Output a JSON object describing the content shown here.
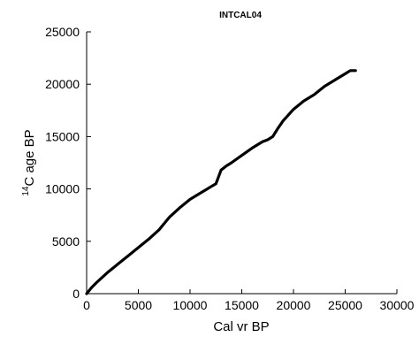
{
  "chart_data": {
    "type": "line",
    "title": "INTCAL04",
    "xlabel": "Cal vr BP",
    "ylabel_sup": "14",
    "ylabel_main": "C age  BP",
    "xlim": [
      0,
      30000
    ],
    "ylim": [
      0,
      25000
    ],
    "xticks": [
      0,
      5000,
      10000,
      15000,
      20000,
      25000,
      30000
    ],
    "yticks": [
      0,
      5000,
      10000,
      15000,
      20000,
      25000
    ],
    "grid": false,
    "legend": "none",
    "series": [
      {
        "x": [
          0,
          500,
          1000,
          2000,
          3000,
          4000,
          5000,
          6000,
          7000,
          8000,
          9000,
          10000,
          11000,
          11500,
          12000,
          12500,
          13000,
          13500,
          14000,
          15000,
          16000,
          17000,
          17500,
          18000,
          18500,
          19000,
          20000,
          21000,
          22000,
          23000,
          24000,
          25000,
          25500,
          26000
        ],
        "y": [
          0,
          600,
          1100,
          2000,
          2800,
          3600,
          4400,
          5200,
          6100,
          7300,
          8200,
          9000,
          9600,
          9900,
          10200,
          10500,
          11800,
          12200,
          12500,
          13200,
          13900,
          14500,
          14700,
          15000,
          15800,
          16500,
          17600,
          18400,
          19000,
          19800,
          20400,
          21000,
          21300,
          21300
        ]
      }
    ]
  }
}
